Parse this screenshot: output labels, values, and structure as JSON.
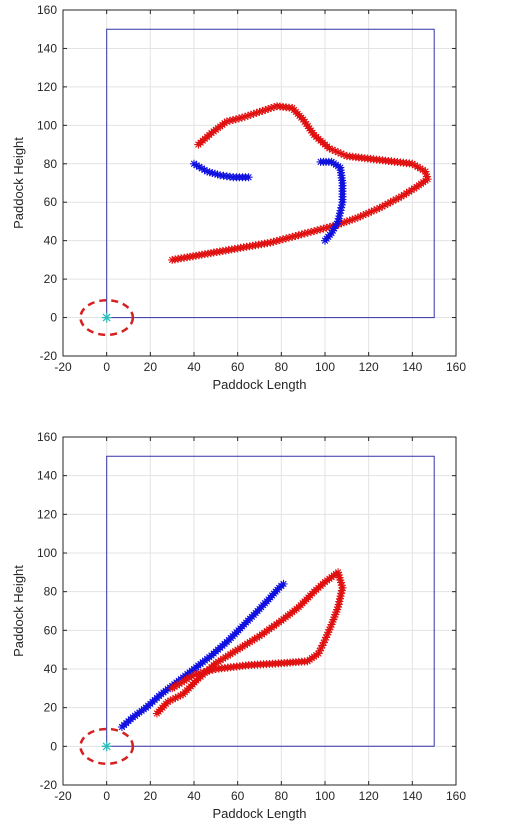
{
  "chart_data": [
    {
      "type": "scatter",
      "xlabel": "Paddock Length",
      "ylabel": "Paddock Height",
      "xlim": [
        -20,
        160
      ],
      "ylim": [
        -20,
        160
      ],
      "xticks": [
        -20,
        0,
        20,
        40,
        60,
        80,
        100,
        120,
        140,
        160
      ],
      "yticks": [
        -20,
        0,
        20,
        40,
        60,
        80,
        100,
        120,
        140,
        160
      ],
      "grid": true,
      "boundary": {
        "x": [
          0,
          150,
          150,
          0,
          0
        ],
        "y": [
          0,
          0,
          150,
          150,
          0
        ],
        "color": "#3333aa"
      },
      "origin_marker": {
        "x": 0,
        "y": 0,
        "color": "#33bbbb",
        "circle_radius": 10,
        "circle_color": "#d62020"
      },
      "series": [
        {
          "color": "#e01010",
          "marker": "*",
          "points": [
            [
              30,
              30
            ],
            [
              45,
              33
            ],
            [
              60,
              36
            ],
            [
              75,
              39
            ],
            [
              85,
              42
            ],
            [
              95,
              45
            ],
            [
              105,
              48
            ],
            [
              115,
              52
            ],
            [
              125,
              57
            ],
            [
              135,
              63
            ],
            [
              142,
              68
            ],
            [
              147,
              72
            ],
            [
              146,
              76
            ],
            [
              140,
              80
            ],
            [
              125,
              82
            ],
            [
              110,
              84
            ],
            [
              102,
              88
            ],
            [
              95,
              95
            ],
            [
              90,
              103
            ],
            [
              85,
              109
            ],
            [
              78,
              110
            ],
            [
              70,
              107
            ],
            [
              62,
              104
            ],
            [
              55,
              102
            ],
            [
              48,
              96
            ],
            [
              42,
              90
            ]
          ]
        },
        {
          "color": "#1010e0",
          "marker": "*",
          "points": [
            [
              40,
              80
            ],
            [
              46,
              76
            ],
            [
              52,
              74
            ],
            [
              58,
              73
            ],
            [
              65,
              73
            ]
          ]
        },
        {
          "color": "#1010e0",
          "marker": "*",
          "points": [
            [
              98,
              81
            ],
            [
              103,
              81
            ],
            [
              107,
              78
            ],
            [
              108,
              70
            ],
            [
              108,
              60
            ],
            [
              106,
              50
            ],
            [
              103,
              44
            ],
            [
              100,
              40
            ]
          ]
        }
      ]
    },
    {
      "type": "scatter",
      "xlabel": "Paddock Length",
      "ylabel": "Paddock Height",
      "xlim": [
        -20,
        160
      ],
      "ylim": [
        -20,
        160
      ],
      "xticks": [
        -20,
        0,
        20,
        40,
        60,
        80,
        100,
        120,
        140,
        160
      ],
      "yticks": [
        -20,
        0,
        20,
        40,
        60,
        80,
        100,
        120,
        140,
        160
      ],
      "grid": true,
      "boundary": {
        "x": [
          0,
          150,
          150,
          0,
          0
        ],
        "y": [
          0,
          0,
          150,
          150,
          0
        ],
        "color": "#3333aa"
      },
      "origin_marker": {
        "x": 0,
        "y": 0,
        "color": "#33bbbb",
        "circle_radius": 10,
        "circle_color": "#d62020"
      },
      "series": [
        {
          "color": "#1010e0",
          "marker": "*",
          "points": [
            [
              7,
              10
            ],
            [
              12,
              15
            ],
            [
              18,
              20
            ],
            [
              25,
              27
            ],
            [
              32,
              33
            ],
            [
              40,
              40
            ],
            [
              48,
              47
            ],
            [
              56,
              55
            ],
            [
              63,
              63
            ],
            [
              70,
              71
            ],
            [
              75,
              77
            ],
            [
              79,
              82
            ],
            [
              81,
              84
            ]
          ]
        },
        {
          "color": "#e01010",
          "marker": "*",
          "points": [
            [
              23,
              17
            ],
            [
              28,
              23
            ],
            [
              35,
              27
            ],
            [
              42,
              35
            ],
            [
              50,
              43
            ],
            [
              60,
              50
            ],
            [
              70,
              57
            ],
            [
              80,
              65
            ],
            [
              88,
              72
            ],
            [
              95,
              80
            ],
            [
              100,
              85
            ],
            [
              106,
              90
            ],
            [
              108,
              82
            ],
            [
              106,
              72
            ],
            [
              103,
              63
            ],
            [
              100,
              55
            ],
            [
              97,
              48
            ],
            [
              92,
              44
            ],
            [
              80,
              43
            ],
            [
              65,
              42
            ],
            [
              50,
              40
            ],
            [
              40,
              37
            ],
            [
              30,
              30
            ]
          ]
        }
      ]
    }
  ]
}
